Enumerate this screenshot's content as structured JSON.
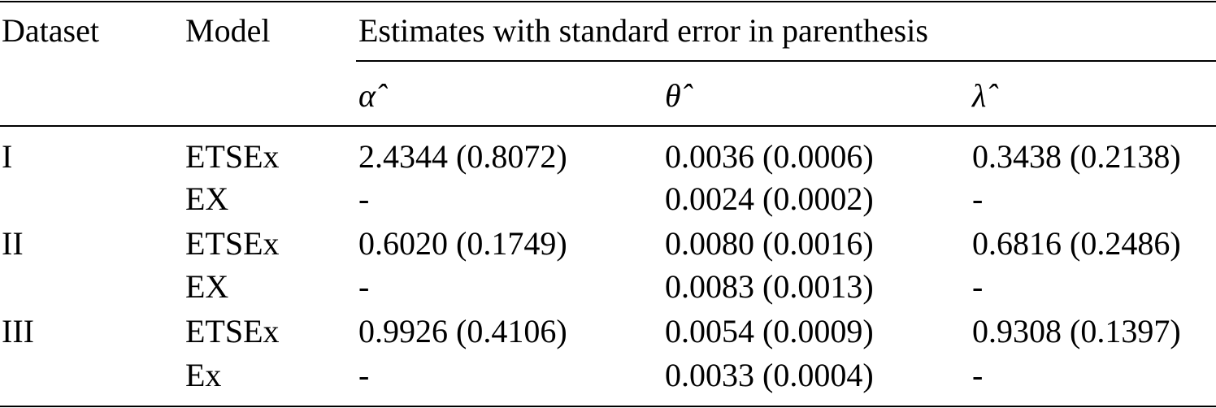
{
  "table": {
    "header": {
      "dataset": "Dataset",
      "model": "Model",
      "estimates": "Estimates with standard error in parenthesis",
      "params": [
        "α̂",
        "θ̂",
        "λ̂"
      ]
    },
    "rows": [
      [
        "I",
        "ETSEx",
        "2.4344 (0.8072)",
        "0.0036 (0.0006)",
        "0.3438 (0.2138)"
      ],
      [
        "",
        "EX",
        "-",
        "0.0024 (0.0002)",
        "-"
      ],
      [
        "II",
        "ETSEx",
        "0.6020 (0.1749)",
        "0.0080 (0.0016)",
        "0.6816 (0.2486)"
      ],
      [
        "",
        "EX",
        "-",
        "0.0083 (0.0013)",
        "-"
      ],
      [
        "III",
        "ETSEx",
        "0.9926 (0.4106)",
        "0.0054 (0.0009)",
        "0.9308 (0.1397)"
      ],
      [
        "",
        "Ex",
        "-",
        "0.0033 (0.0004)",
        "-"
      ]
    ]
  }
}
